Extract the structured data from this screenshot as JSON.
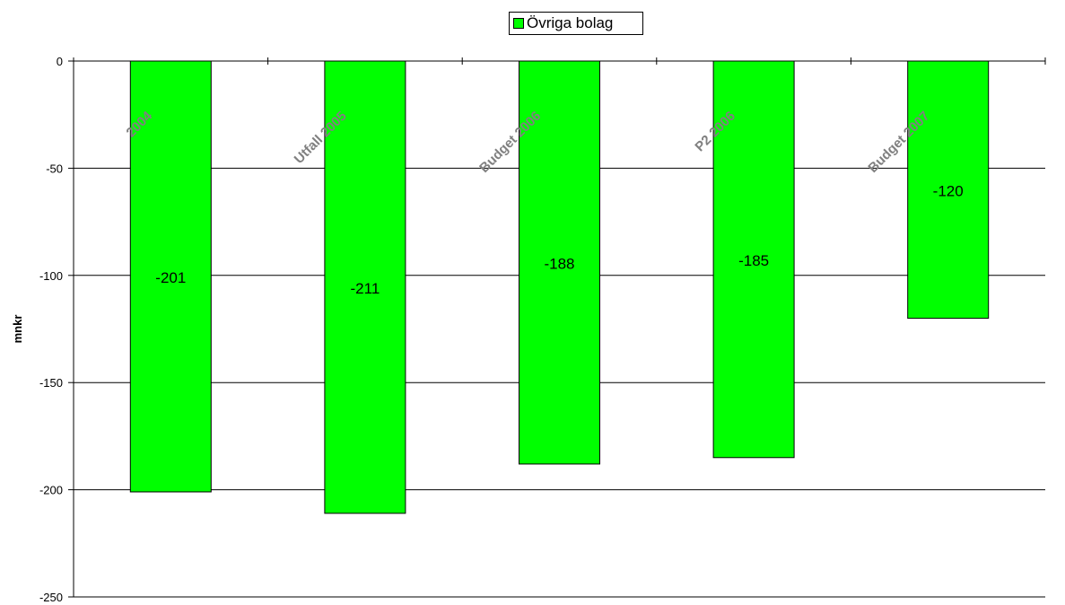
{
  "chart_data": {
    "type": "bar",
    "categories": [
      "2004",
      "Utfall 2005",
      "Budget 2006",
      "P2 2006",
      "Budget 2007"
    ],
    "series": [
      {
        "name": "Övriga bolag",
        "values": [
          -201,
          -211,
          -188,
          -185,
          -120
        ],
        "color": "#00ff00"
      }
    ],
    "value_labels": [
      "-201",
      "-211",
      "-188",
      "-185",
      "-120"
    ],
    "ylabel": "mnkr",
    "ylim": [
      -250,
      0
    ],
    "yticks": [
      0,
      -50,
      -100,
      -150,
      -200,
      -250
    ],
    "grid": true,
    "legend": "top-center",
    "category_label_color": "#808080"
  }
}
